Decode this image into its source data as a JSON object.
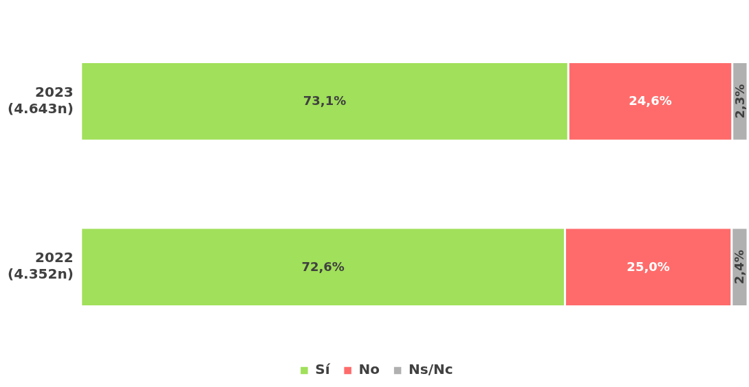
{
  "chart_data": {
    "type": "bar",
    "orientation": "horizontal",
    "stacked": true,
    "categories": [
      "2023\n(4.643n)",
      "2022\n(4.352n)"
    ],
    "series": [
      {
        "name": "Sí",
        "color": "#a0e05a",
        "values": [
          73.1,
          72.6
        ],
        "value_labels": [
          "73,1%",
          "72,6%"
        ]
      },
      {
        "name": "No",
        "color": "#ff6b6b",
        "values": [
          24.6,
          25.0
        ],
        "value_labels": [
          "24,6%",
          "25,0%"
        ]
      },
      {
        "name": "Ns/Nc",
        "color": "#b0b0b0",
        "values": [
          2.3,
          2.4
        ],
        "value_labels": [
          "2,3%",
          "2,4%"
        ]
      }
    ],
    "xlim": [
      0,
      100
    ],
    "tick_labels": "y",
    "legend": "bottom"
  }
}
